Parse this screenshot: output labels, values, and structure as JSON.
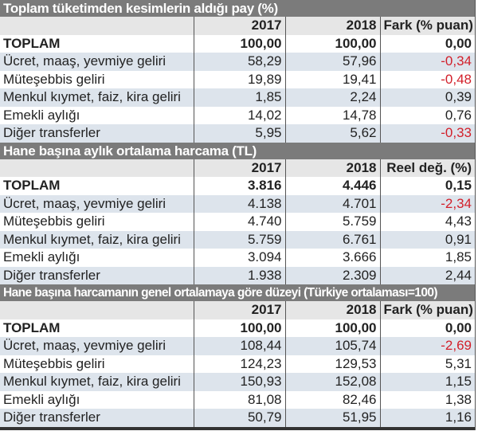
{
  "sections": [
    {
      "title": "Toplam tüketimden kesimlerin aldığı pay (%)",
      "columns": [
        "",
        "2017",
        "2018",
        "Fark (% puan)"
      ],
      "rows": [
        {
          "label": "TOPLAM",
          "v2017": "100,00",
          "v2018": "100,00",
          "diff": "0,00",
          "negative": false
        },
        {
          "label": "Ücret, maaş, yevmiye geliri",
          "v2017": "58,29",
          "v2018": "57,96",
          "diff": "-0,34",
          "negative": true
        },
        {
          "label": "Müteşebbis geliri",
          "v2017": "19,89",
          "v2018": "19,41",
          "diff": "-0,48",
          "negative": true
        },
        {
          "label": "Menkul kıymet, faiz, kira geliri",
          "v2017": "1,85",
          "v2018": "2,24",
          "diff": "0,39",
          "negative": false
        },
        {
          "label": "Emekli aylığı",
          "v2017": "14,02",
          "v2018": "14,78",
          "diff": "0,76",
          "negative": false
        },
        {
          "label": "Diğer transferler",
          "v2017": "5,95",
          "v2018": "5,62",
          "diff": "-0,33",
          "negative": true
        }
      ]
    },
    {
      "title": "Hane başına aylık ortalama harcama (TL)",
      "columns": [
        "",
        "2017",
        "2018",
        "Reel değ. (%)"
      ],
      "rows": [
        {
          "label": "TOPLAM",
          "v2017": "3.816",
          "v2018": "4.446",
          "diff": "0,15",
          "negative": false
        },
        {
          "label": "Ücret, maaş, yevmiye geliri",
          "v2017": "4.138",
          "v2018": "4.701",
          "diff": "-2,34",
          "negative": true
        },
        {
          "label": "Müteşebbis geliri",
          "v2017": "4.740",
          "v2018": "5.759",
          "diff": "4,43",
          "negative": false
        },
        {
          "label": "Menkul kıymet, faiz, kira geliri",
          "v2017": "5.759",
          "v2018": "6.761",
          "diff": "0,91",
          "negative": false
        },
        {
          "label": "Emekli aylığı",
          "v2017": "3.094",
          "v2018": "3.666",
          "diff": "1,85",
          "negative": false
        },
        {
          "label": "Diğer transferler",
          "v2017": "1.938",
          "v2018": "2.309",
          "diff": "2,44",
          "negative": false
        }
      ]
    },
    {
      "title": "Hane başına harcamanın genel ortalamaya göre düzeyi (Türkiye ortalaması=100)",
      "columns": [
        "",
        "2017",
        "2018",
        "Fark (% puan)"
      ],
      "rows": [
        {
          "label": "TOPLAM",
          "v2017": "100,00",
          "v2018": "100,00",
          "diff": "0,00",
          "negative": false
        },
        {
          "label": "Ücret, maaş, yevmiye geliri",
          "v2017": "108,44",
          "v2018": "105,74",
          "diff": "-2,69",
          "negative": true
        },
        {
          "label": "Müteşebbis geliri",
          "v2017": "124,23",
          "v2018": "129,53",
          "diff": "5,31",
          "negative": false
        },
        {
          "label": "Menkul kıymet, faiz, kira geliri",
          "v2017": "150,93",
          "v2018": "152,08",
          "diff": "1,15",
          "negative": false
        },
        {
          "label": "Emekli aylığı",
          "v2017": "81,08",
          "v2018": "82,46",
          "diff": "1,38",
          "negative": false
        },
        {
          "label": "Diğer transferler",
          "v2017": "50,79",
          "v2018": "51,95",
          "diff": "1,16",
          "negative": false
        }
      ]
    }
  ],
  "colors": {
    "header_bar": "#7b7b7b",
    "column_header_bg": "#e6e6e6",
    "alt_row_bg": "#dde4ec",
    "negative_text": "#d21f2a"
  }
}
